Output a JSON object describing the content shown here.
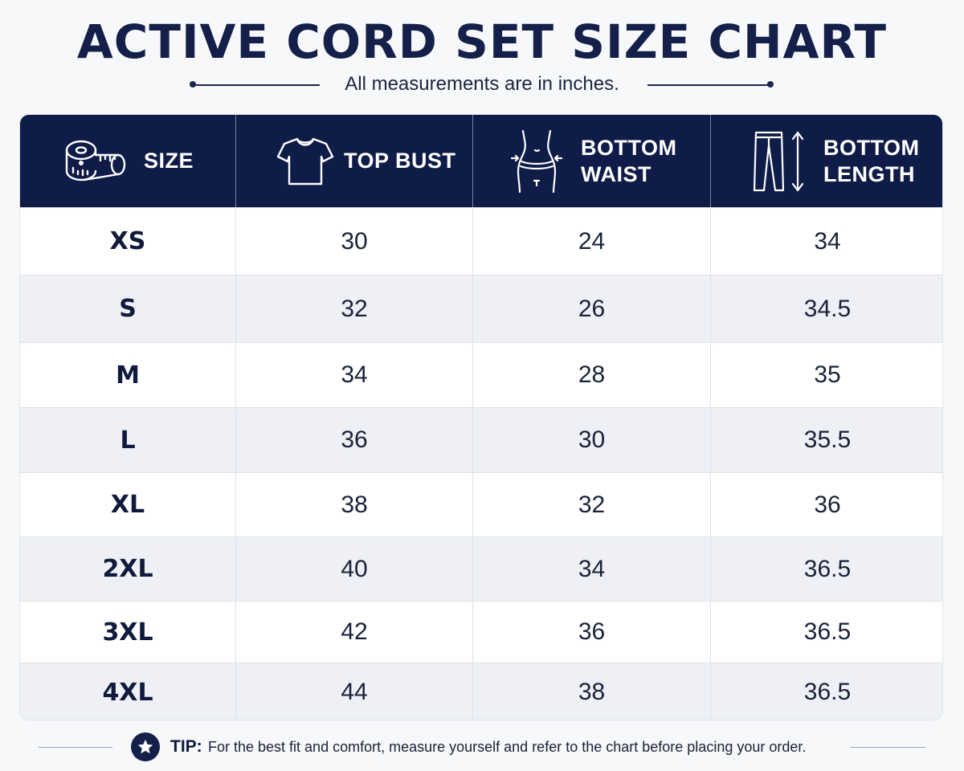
{
  "title": "ACTIVE CORD SET SIZE CHART",
  "subtitle": "All measurements are in inches.",
  "table": {
    "headers": [
      {
        "label": "SIZE",
        "icon": "measuring-tape-icon"
      },
      {
        "label": "TOP BUST",
        "icon": "t-shirt-icon"
      },
      {
        "label": "BOTTOM WAIST",
        "label_line1": "BOTTOM",
        "label_line2": "WAIST",
        "icon": "waist-measure-icon"
      },
      {
        "label": "BOTTOM LENGTH",
        "label_line1": "BOTTOM",
        "label_line2": "LENGTH",
        "icon": "pants-length-icon"
      }
    ],
    "rows": [
      {
        "size": "XS",
        "top_bust": "30",
        "bottom_waist": "24",
        "bottom_length": "34"
      },
      {
        "size": "S",
        "top_bust": "32",
        "bottom_waist": "26",
        "bottom_length": "34.5"
      },
      {
        "size": "M",
        "top_bust": "34",
        "bottom_waist": "28",
        "bottom_length": "35"
      },
      {
        "size": "L",
        "top_bust": "36",
        "bottom_waist": "30",
        "bottom_length": "35.5"
      },
      {
        "size": "XL",
        "top_bust": "38",
        "bottom_waist": "32",
        "bottom_length": "36"
      },
      {
        "size": "2XL",
        "top_bust": "40",
        "bottom_waist": "34",
        "bottom_length": "36.5"
      },
      {
        "size": "3XL",
        "top_bust": "42",
        "bottom_waist": "36",
        "bottom_length": "36.5"
      },
      {
        "size": "4XL",
        "top_bust": "44",
        "bottom_waist": "38",
        "bottom_length": "36.5"
      }
    ]
  },
  "tip": {
    "label": "TIP:",
    "text": "For the best fit and comfort, measure yourself and refer to the chart before placing your order.",
    "icon": "star-icon"
  },
  "colors": {
    "header_bg": "#0f1c47",
    "title": "#14204a",
    "alt_row": "#eef0f6",
    "page_bg": "#f7f8fa"
  }
}
